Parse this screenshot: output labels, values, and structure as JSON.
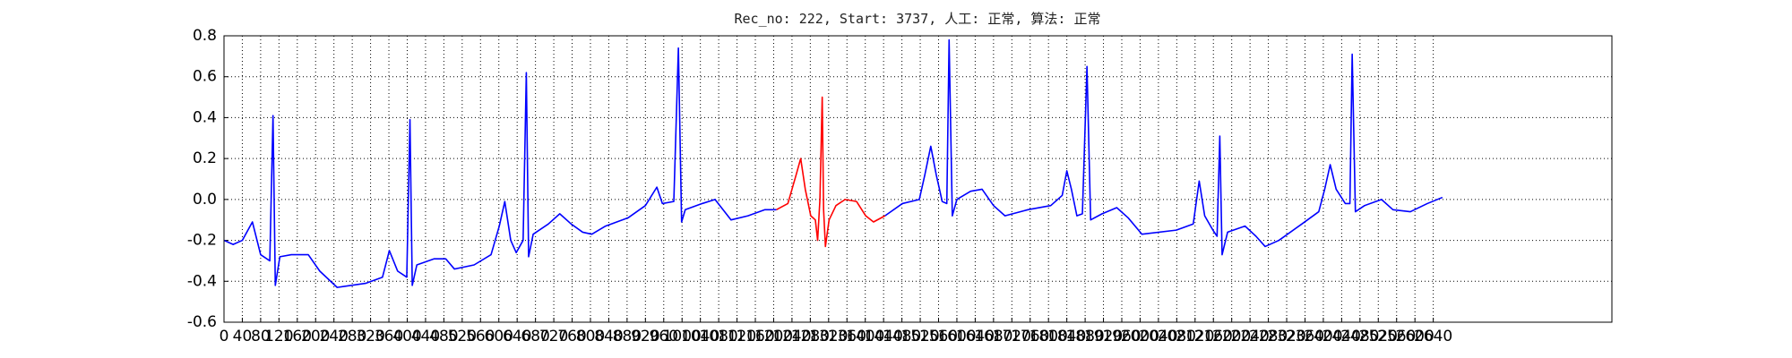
{
  "chart_data": {
    "type": "line",
    "title": "Rec_no: 222, Start: 3737, 人工: 正常, 算法: 正常",
    "x": [
      0,
      20,
      40,
      62,
      80,
      100,
      107,
      112,
      122,
      147,
      184,
      209,
      247,
      309,
      346,
      361,
      379,
      399,
      406,
      411,
      421,
      459,
      484,
      503,
      546,
      583,
      601,
      613,
      626,
      638,
      653,
      660,
      665,
      675,
      708,
      733,
      758,
      783,
      803,
      833,
      882,
      920,
      945,
      957,
      982,
      992,
      999,
      1007,
      1044,
      1072,
      1107,
      1144,
      1181,
      1206,
      1231,
      1249,
      1259,
      1269,
      1281,
      1291,
      1296,
      1301,
      1306,
      1309,
      1313,
      1321,
      1336,
      1356,
      1381,
      1401,
      1418,
      1443,
      1481,
      1518,
      1530,
      1543,
      1555,
      1568,
      1578,
      1583,
      1590,
      1600,
      1630,
      1655,
      1680,
      1705,
      1755,
      1805,
      1830,
      1840,
      1850,
      1862,
      1874,
      1884,
      1892,
      1917,
      1949,
      1974,
      2004,
      2079,
      2116,
      2129,
      2141,
      2159,
      2168,
      2174,
      2179,
      2191,
      2229,
      2253,
      2273,
      2303,
      2353,
      2390,
      2403,
      2415,
      2428,
      2448,
      2458,
      2463,
      2470,
      2490,
      2527,
      2552,
      2590,
      2627,
      2660
    ],
    "series": [
      {
        "color": "#0000ff",
        "values": [
          -0.2,
          -0.22,
          -0.2,
          -0.11,
          -0.27,
          -0.3,
          0.41,
          -0.42,
          -0.28,
          -0.27,
          -0.27,
          -0.35,
          -0.43,
          -0.41,
          -0.38,
          -0.25,
          -0.35,
          -0.38,
          0.39,
          -0.42,
          -0.32,
          -0.29,
          -0.29,
          -0.34,
          -0.32,
          -0.27,
          -0.13,
          -0.01,
          -0.2,
          -0.26,
          -0.2,
          0.62,
          -0.28,
          -0.17,
          -0.12,
          -0.07,
          -0.12,
          -0.16,
          -0.17,
          -0.13,
          -0.09,
          -0.03,
          0.06,
          -0.02,
          -0.01,
          0.74,
          -0.11,
          -0.05,
          -0.02,
          0.0,
          -0.1,
          -0.08,
          -0.05,
          -0.05,
          null,
          null,
          null,
          null,
          null,
          null,
          null,
          null,
          null,
          null,
          null,
          null,
          null,
          null,
          null,
          null,
          null,
          -0.08,
          -0.02,
          0.0,
          0.12,
          0.26,
          0.12,
          -0.01,
          -0.02,
          0.78,
          -0.08,
          0.0,
          0.04,
          0.05,
          -0.03,
          -0.08,
          -0.05,
          -0.03,
          0.02,
          0.14,
          0.05,
          -0.08,
          -0.07,
          0.65,
          -0.1,
          -0.07,
          -0.04,
          -0.09,
          -0.17,
          -0.15,
          -0.12,
          0.09,
          -0.08,
          -0.15,
          -0.18,
          0.31,
          -0.27,
          -0.16,
          -0.13,
          -0.18,
          -0.23,
          -0.2,
          -0.12,
          -0.06,
          0.05,
          0.17,
          0.05,
          -0.02,
          -0.02,
          0.71,
          -0.06,
          -0.03,
          0.0,
          -0.05,
          -0.06,
          -0.02,
          0.01
        ]
      },
      {
        "color": "#ff0000",
        "values": [
          null,
          null,
          null,
          null,
          null,
          null,
          null,
          null,
          null,
          null,
          null,
          null,
          null,
          null,
          null,
          null,
          null,
          null,
          null,
          null,
          null,
          null,
          null,
          null,
          null,
          null,
          null,
          null,
          null,
          null,
          null,
          null,
          null,
          null,
          null,
          null,
          null,
          null,
          null,
          null,
          null,
          null,
          null,
          null,
          null,
          null,
          null,
          null,
          null,
          null,
          null,
          null,
          null,
          -0.05,
          -0.02,
          0.12,
          0.2,
          0.05,
          -0.08,
          -0.1,
          -0.2,
          0.0,
          0.5,
          -0.05,
          -0.23,
          -0.1,
          -0.03,
          0.0,
          -0.01,
          -0.08,
          -0.11,
          -0.08,
          null,
          null,
          null,
          null,
          null,
          null,
          null,
          null,
          null,
          null,
          null,
          null,
          null,
          null,
          null,
          null,
          null,
          null,
          null,
          null,
          null,
          null,
          null,
          null,
          null,
          null,
          null,
          null,
          null,
          null,
          null,
          null,
          null,
          null,
          null,
          null,
          null,
          null,
          null,
          null,
          null,
          null,
          null,
          null,
          null,
          null,
          null,
          null,
          null,
          null,
          null,
          null,
          null,
          null,
          null
        ]
      }
    ],
    "xlim": [
      0,
      3030
    ],
    "xticks": [
      0,
      40,
      80,
      120,
      160,
      200,
      240,
      280,
      320,
      360,
      400,
      440,
      480,
      520,
      560,
      600,
      640,
      680,
      720,
      760,
      800,
      840,
      880,
      920,
      960,
      1000,
      1040,
      1080,
      1120,
      1160,
      1200,
      1240,
      1280,
      1320,
      1360,
      1400,
      1440,
      1480,
      1520,
      1560,
      1600,
      1640,
      1680,
      1720,
      1760,
      1800,
      1840,
      1880,
      1920,
      1960,
      2000,
      2040,
      2080,
      2120,
      2160,
      2200,
      2240,
      2280,
      2320,
      2360,
      2400,
      2440,
      2480,
      2520,
      2560,
      2600,
      2640
    ],
    "ylim": [
      -0.6,
      0.8
    ],
    "yticks": [
      -0.6,
      -0.4,
      -0.2,
      {
        "value": 0,
        "label": "0.0"
      },
      0.2,
      0.4,
      0.6,
      0.8
    ],
    "grid": true
  }
}
